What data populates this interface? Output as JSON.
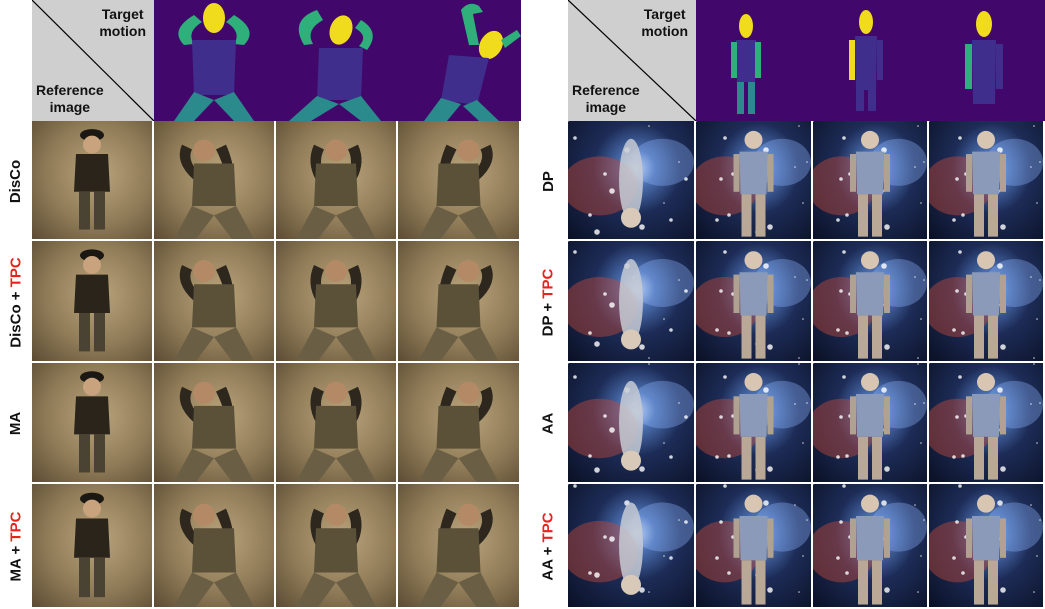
{
  "left_panel": {
    "header": {
      "target_motion": [
        "Target",
        "motion"
      ],
      "reference_image": [
        "Reference",
        "image"
      ]
    },
    "rows": [
      {
        "method": "DisCo",
        "suffix": ""
      },
      {
        "method": "DisCo + ",
        "suffix": "TPC"
      },
      {
        "method": "MA",
        "suffix": ""
      },
      {
        "method": "MA + ",
        "suffix": "TPC"
      }
    ]
  },
  "right_panel": {
    "header": {
      "target_motion": [
        "Target",
        "motion"
      ],
      "reference_image": [
        "Reference",
        "image"
      ]
    },
    "rows": [
      {
        "method": "DP",
        "suffix": ""
      },
      {
        "method": "DP + ",
        "suffix": "TPC"
      },
      {
        "method": "AA",
        "suffix": ""
      },
      {
        "method": "AA + ",
        "suffix": "TPC"
      }
    ]
  },
  "colors": {
    "tpc_highlight": "#e8231d",
    "pose_background": "#42076a",
    "pose_torso": "#3f2e8c",
    "pose_arms": "#2fb07a",
    "pose_head": "#f0dc1c",
    "pose_legs": "#2a8a8c"
  }
}
